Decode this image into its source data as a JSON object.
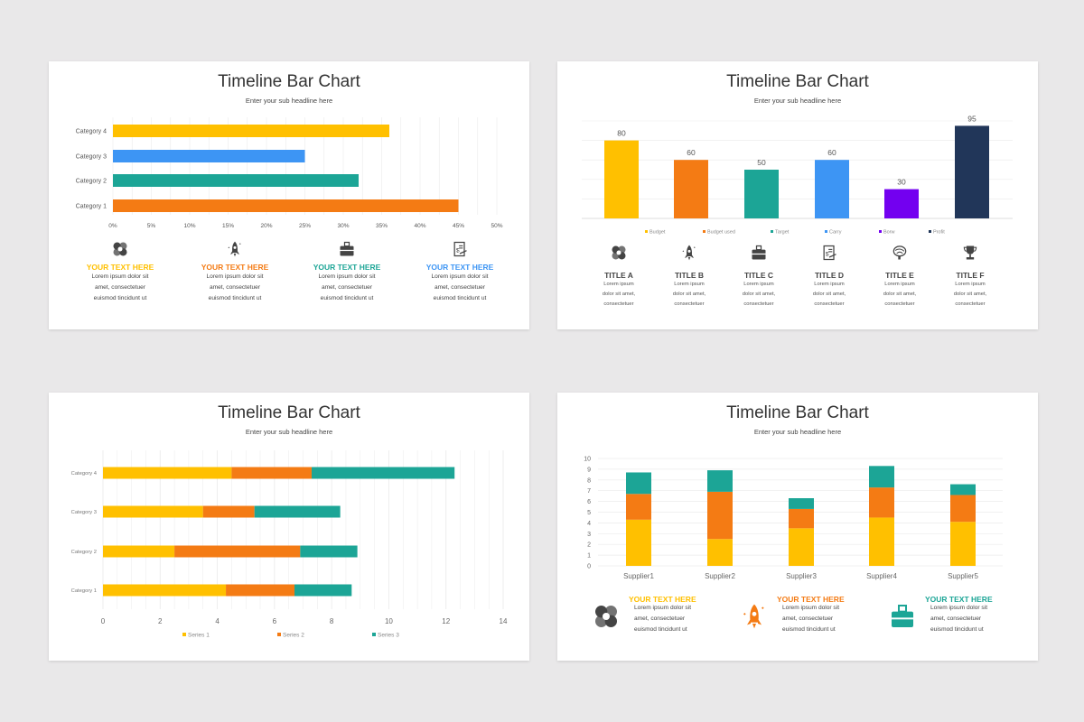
{
  "colors": {
    "yellow": "#ffc000",
    "orange": "#f47b14",
    "teal": "#1ca596",
    "blue": "#3d95f4",
    "purple": "#7300f0",
    "navy": "#213659",
    "grid": "#ebebeb",
    "text": "#555555"
  },
  "panels": [
    {
      "title": "Timeline Bar Chart",
      "subtitle": "Enter your sub headline here",
      "items": [
        {
          "icon": "hands-teamwork-icon",
          "heading": "YOUR TEXT HERE",
          "color": "#ffc000",
          "lines": [
            "Lorem ipsum dolor sit",
            "amet, consectetuer",
            "euismod tincidunt ut"
          ]
        },
        {
          "icon": "rocket-icon",
          "heading": "YOUR TEXT HERE",
          "color": "#f47b14",
          "lines": [
            "Lorem ipsum dolor sit",
            "amet, consectetuer",
            "euismod tincidunt ut"
          ]
        },
        {
          "icon": "briefcase-icon",
          "heading": "YOUR TEXT HERE",
          "color": "#1ca596",
          "lines": [
            "Lorem ipsum dolor sit",
            "amet, consectetuer",
            "euismod tincidunt ut"
          ]
        },
        {
          "icon": "invoice-icon",
          "heading": "YOUR TEXT HERE",
          "color": "#3d95f4",
          "lines": [
            "Lorem ipsum dolor sit",
            "amet, consectetuer",
            "euismod tincidunt ut"
          ]
        }
      ]
    },
    {
      "title": "Timeline Bar Chart",
      "subtitle": "Enter your sub headline here",
      "items": [
        {
          "icon": "hands-teamwork-icon",
          "heading": "TITLE A",
          "lines": [
            "Lorem ipsum",
            "dolor sit amet,",
            "consectetuer"
          ]
        },
        {
          "icon": "rocket-icon",
          "heading": "TITLE B",
          "lines": [
            "Lorem ipsum",
            "dolor sit amet,",
            "consectetuer"
          ]
        },
        {
          "icon": "briefcase-icon",
          "heading": "TITLE C",
          "lines": [
            "Lorem ipsum",
            "dolor sit amet,",
            "consectetuer"
          ]
        },
        {
          "icon": "invoice-icon",
          "heading": "TITLE D",
          "lines": [
            "Lorem ipsum",
            "dolor sit amet,",
            "consectetuer"
          ]
        },
        {
          "icon": "brain-icon",
          "heading": "TITLE E",
          "lines": [
            "Lorem ipsum",
            "dolor sit amet,",
            "consectetuer"
          ]
        },
        {
          "icon": "trophy-icon",
          "heading": "TITLE F",
          "lines": [
            "Lorem ipsum",
            "dolor sit amet,",
            "consectetuer"
          ]
        }
      ]
    },
    {
      "title": "Timeline Bar Chart",
      "subtitle": "Enter your sub headline here"
    },
    {
      "title": "Timeline Bar Chart",
      "subtitle": "Enter your sub headline here",
      "items": [
        {
          "icon": "hands-teamwork-icon",
          "heading": "YOUR TEXT HERE",
          "color": "#ffc000",
          "icon_color": "#444444",
          "lines": [
            "Lorem ipsum dolor sit",
            "amet, consectetuer",
            "euismod tincidunt ut"
          ]
        },
        {
          "icon": "rocket-icon",
          "heading": "YOUR TEXT HERE",
          "color": "#f47b14",
          "icon_color": "#f47b14",
          "lines": [
            "Lorem ipsum dolor sit",
            "amet, consectetuer",
            "euismod tincidunt ut"
          ]
        },
        {
          "icon": "briefcase-icon",
          "heading": "YOUR TEXT HERE",
          "color": "#1ca596",
          "icon_color": "#1ca596",
          "lines": [
            "Lorem ipsum dolor sit",
            "amet, consectetuer",
            "euismod tincidunt ut"
          ]
        }
      ]
    }
  ],
  "chart_data": [
    {
      "type": "bar",
      "orientation": "horizontal",
      "categories": [
        "Category 1",
        "Category 2",
        "Category 3",
        "Category 4"
      ],
      "values": [
        45,
        32,
        25,
        36
      ],
      "colors": [
        "#f47b14",
        "#1ca596",
        "#3d95f4",
        "#ffc000"
      ],
      "xlim": [
        0,
        50
      ],
      "xticks": [
        "0%",
        "5%",
        "10%",
        "15%",
        "20%",
        "25%",
        "30%",
        "35%",
        "40%",
        "45%",
        "50%"
      ],
      "unit": "%",
      "grid": true
    },
    {
      "type": "bar",
      "orientation": "vertical",
      "categories": [
        "Budget",
        "Budget used",
        "Target",
        "Carry",
        "Borw",
        "Profit"
      ],
      "values": [
        80,
        60,
        50,
        60,
        30,
        95
      ],
      "colors": [
        "#ffc000",
        "#f47b14",
        "#1ca596",
        "#3d95f4",
        "#7300f0",
        "#213659"
      ],
      "ylim": [
        0,
        100
      ],
      "data_labels": true,
      "legend": "bottom",
      "grid": true
    },
    {
      "type": "bar",
      "orientation": "horizontal",
      "stacked": true,
      "categories": [
        "Category 1",
        "Category 2",
        "Category 3",
        "Category 4"
      ],
      "series": [
        {
          "name": "Series 1",
          "color": "#ffc000",
          "values": [
            4.3,
            2.5,
            3.5,
            4.5
          ]
        },
        {
          "name": "Series 2",
          "color": "#f47b14",
          "values": [
            2.4,
            4.4,
            1.8,
            2.8
          ]
        },
        {
          "name": "Series 3",
          "color": "#1ca596",
          "values": [
            2.0,
            2.0,
            3.0,
            5.0
          ]
        }
      ],
      "xlim": [
        0,
        14
      ],
      "xticks": [
        "0",
        "2",
        "4",
        "6",
        "8",
        "10",
        "12",
        "14"
      ],
      "legend": "bottom",
      "grid": true
    },
    {
      "type": "bar",
      "orientation": "vertical",
      "stacked": true,
      "categories": [
        "Supplier1",
        "Supplier2",
        "Supplier3",
        "Supplier4",
        "Supplier5"
      ],
      "series": [
        {
          "color": "#ffc000",
          "values": [
            4.3,
            2.5,
            3.5,
            4.5,
            4.1
          ]
        },
        {
          "color": "#f47b14",
          "values": [
            2.4,
            4.4,
            1.8,
            2.8,
            2.5
          ]
        },
        {
          "color": "#1ca596",
          "values": [
            2.0,
            2.0,
            1.0,
            2.0,
            1.0
          ]
        }
      ],
      "ylim": [
        0,
        10
      ],
      "yticks": [
        "0",
        "1",
        "2",
        "3",
        "4",
        "5",
        "6",
        "7",
        "8",
        "9",
        "10"
      ],
      "grid": true
    }
  ]
}
